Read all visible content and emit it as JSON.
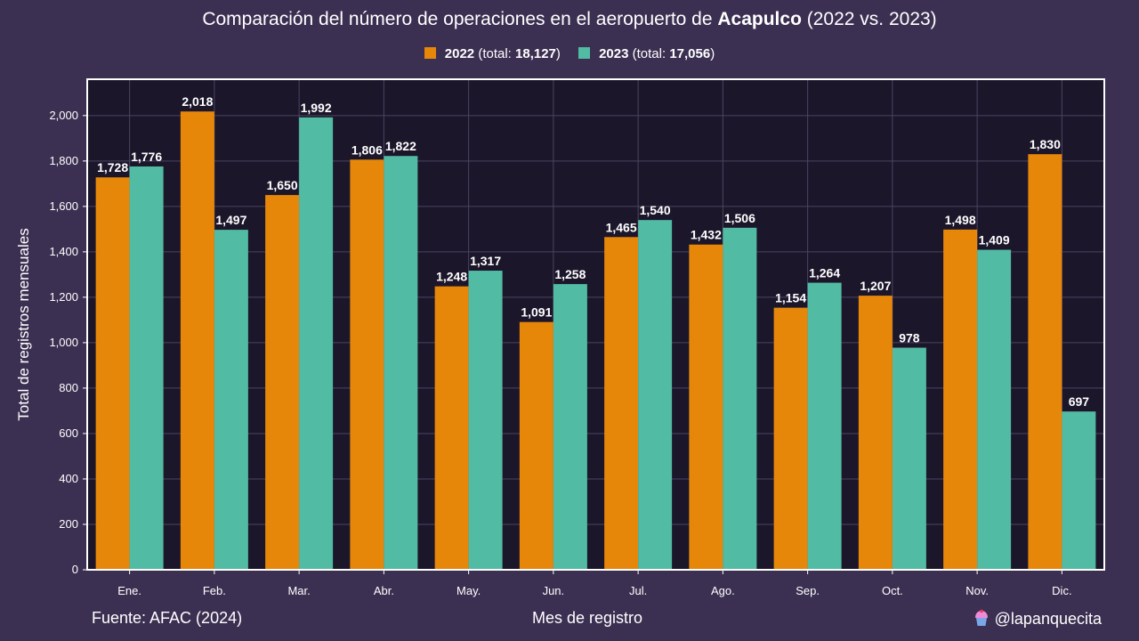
{
  "header": {
    "title_prefix": "Comparación del número de operaciones en el aeropuerto de ",
    "title_airport": "Acapulco",
    "title_suffix": " (2022 vs. 2023)"
  },
  "legend": [
    {
      "year": "2022",
      "label_open": " (total: ",
      "total": "18,127",
      "label_close": ")"
    },
    {
      "year": "2023",
      "label_open": " (total: ",
      "total": "17,056",
      "label_close": ")"
    }
  ],
  "footer": {
    "source": "Fuente: AFAC (2024)",
    "credit": "@lapanquecita"
  },
  "colors": {
    "background": "#3c3052",
    "plot_background": "#1c162b",
    "series_2022": "#e6870a",
    "series_2023": "#52bba3",
    "grid": "#4a4560"
  },
  "chart_data": {
    "type": "bar",
    "title": "Comparación del número de operaciones en el aeropuerto de Acapulco (2022 vs. 2023)",
    "xlabel": "Mes de registro",
    "ylabel": "Total de registros mensuales",
    "ylim": [
      0,
      2160
    ],
    "yticks": [
      0,
      200,
      400,
      600,
      800,
      1000,
      1200,
      1400,
      1600,
      1800,
      2000
    ],
    "ytick_labels": [
      "0",
      "200",
      "400",
      "600",
      "800",
      "1,000",
      "1,200",
      "1,400",
      "1,600",
      "1,800",
      "2,000"
    ],
    "categories": [
      "Ene.",
      "Feb.",
      "Mar.",
      "Abr.",
      "May.",
      "Jun.",
      "Jul.",
      "Ago.",
      "Sep.",
      "Oct.",
      "Nov.",
      "Dic."
    ],
    "series": [
      {
        "name": "2022",
        "values": [
          1728,
          2018,
          1650,
          1806,
          1248,
          1091,
          1465,
          1432,
          1154,
          1207,
          1498,
          1830
        ]
      },
      {
        "name": "2023",
        "values": [
          1776,
          1497,
          1992,
          1822,
          1317,
          1258,
          1540,
          1506,
          1264,
          978,
          1409,
          697
        ]
      }
    ],
    "grid": true,
    "legend_position": "top-center"
  }
}
